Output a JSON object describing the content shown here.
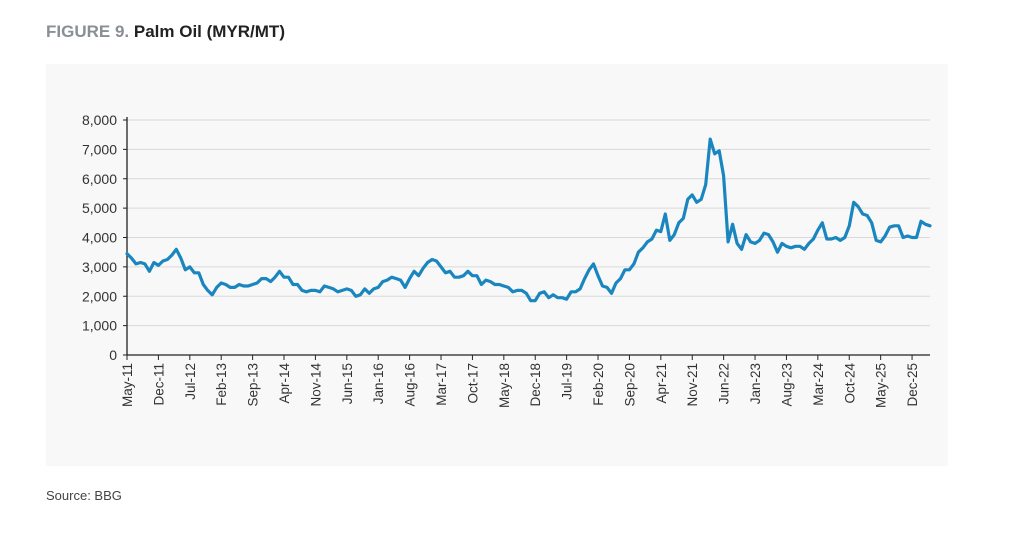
{
  "figure": {
    "label": "FIGURE 9.",
    "title": "Palm Oil (MYR/MT)"
  },
  "source": "Source: BBG",
  "colors": {
    "line": "#1a86bf",
    "axis": "#222222",
    "grid": "#d9d9d9",
    "panel": "#f8f8f8"
  },
  "chart_data": {
    "type": "line",
    "title": "Palm Oil (MYR/MT)",
    "xlabel": "",
    "ylabel": "",
    "ylim": [
      0,
      8000
    ],
    "grid": true,
    "legend": "none",
    "y_ticks": [
      "8,000",
      "7,000",
      "6,000",
      "5,000",
      "4,000",
      "3,000",
      "2,000",
      "1,000",
      "0"
    ],
    "x_ticks": [
      "May-11",
      "Dec-11",
      "Jul-12",
      "Feb-13",
      "Sep-13",
      "Apr-14",
      "Nov-14",
      "Jun-15",
      "Jan-16",
      "Aug-16",
      "Mar-17",
      "Oct-17",
      "May-18",
      "Dec-18",
      "Jul-19",
      "Feb-20",
      "Sep-20",
      "Apr-21",
      "Nov-21",
      "Jun-22",
      "Jan-23",
      "Aug-23",
      "Mar-24",
      "Oct-24",
      "May-25",
      "Dec-25"
    ],
    "series": [
      {
        "values": [
          [
            "2011-05",
            3450
          ],
          [
            "2011-06",
            3300
          ],
          [
            "2011-07",
            3100
          ],
          [
            "2011-08",
            3150
          ],
          [
            "2011-09",
            3100
          ],
          [
            "2011-10",
            2850
          ],
          [
            "2011-11",
            3150
          ],
          [
            "2011-12",
            3050
          ],
          [
            "2012-01",
            3200
          ],
          [
            "2012-02",
            3250
          ],
          [
            "2012-03",
            3400
          ],
          [
            "2012-04",
            3600
          ],
          [
            "2012-05",
            3300
          ],
          [
            "2012-06",
            2900
          ],
          [
            "2012-07",
            3000
          ],
          [
            "2012-08",
            2800
          ],
          [
            "2012-09",
            2800
          ],
          [
            "2012-10",
            2400
          ],
          [
            "2012-11",
            2200
          ],
          [
            "2012-12",
            2050
          ],
          [
            "2013-01",
            2300
          ],
          [
            "2013-02",
            2450
          ],
          [
            "2013-03",
            2400
          ],
          [
            "2013-04",
            2300
          ],
          [
            "2013-05",
            2300
          ],
          [
            "2013-06",
            2400
          ],
          [
            "2013-07",
            2350
          ],
          [
            "2013-08",
            2350
          ],
          [
            "2013-09",
            2400
          ],
          [
            "2013-10",
            2450
          ],
          [
            "2013-11",
            2600
          ],
          [
            "2013-12",
            2600
          ],
          [
            "2014-01",
            2500
          ],
          [
            "2014-02",
            2650
          ],
          [
            "2014-03",
            2850
          ],
          [
            "2014-04",
            2650
          ],
          [
            "2014-05",
            2650
          ],
          [
            "2014-06",
            2400
          ],
          [
            "2014-07",
            2400
          ],
          [
            "2014-08",
            2200
          ],
          [
            "2014-09",
            2150
          ],
          [
            "2014-10",
            2200
          ],
          [
            "2014-11",
            2200
          ],
          [
            "2014-12",
            2150
          ],
          [
            "2015-01",
            2350
          ],
          [
            "2015-02",
            2300
          ],
          [
            "2015-03",
            2250
          ],
          [
            "2015-04",
            2150
          ],
          [
            "2015-05",
            2200
          ],
          [
            "2015-06",
            2250
          ],
          [
            "2015-07",
            2200
          ],
          [
            "2015-08",
            2000
          ],
          [
            "2015-09",
            2050
          ],
          [
            "2015-10",
            2250
          ],
          [
            "2015-11",
            2100
          ],
          [
            "2015-12",
            2250
          ],
          [
            "2016-01",
            2300
          ],
          [
            "2016-02",
            2500
          ],
          [
            "2016-03",
            2550
          ],
          [
            "2016-04",
            2650
          ],
          [
            "2016-05",
            2600
          ],
          [
            "2016-06",
            2550
          ],
          [
            "2016-07",
            2300
          ],
          [
            "2016-08",
            2600
          ],
          [
            "2016-09",
            2850
          ],
          [
            "2016-10",
            2700
          ],
          [
            "2016-11",
            2950
          ],
          [
            "2016-12",
            3150
          ],
          [
            "2017-01",
            3250
          ],
          [
            "2017-02",
            3200
          ],
          [
            "2017-03",
            3000
          ],
          [
            "2017-04",
            2800
          ],
          [
            "2017-05",
            2850
          ],
          [
            "2017-06",
            2650
          ],
          [
            "2017-07",
            2650
          ],
          [
            "2017-08",
            2700
          ],
          [
            "2017-09",
            2850
          ],
          [
            "2017-10",
            2700
          ],
          [
            "2017-11",
            2700
          ],
          [
            "2017-12",
            2400
          ],
          [
            "2018-01",
            2550
          ],
          [
            "2018-02",
            2500
          ],
          [
            "2018-03",
            2400
          ],
          [
            "2018-04",
            2400
          ],
          [
            "2018-05",
            2350
          ],
          [
            "2018-06",
            2300
          ],
          [
            "2018-07",
            2150
          ],
          [
            "2018-08",
            2200
          ],
          [
            "2018-09",
            2200
          ],
          [
            "2018-10",
            2100
          ],
          [
            "2018-11",
            1850
          ],
          [
            "2018-12",
            1850
          ],
          [
            "2019-01",
            2100
          ],
          [
            "2019-02",
            2150
          ],
          [
            "2019-03",
            1950
          ],
          [
            "2019-04",
            2050
          ],
          [
            "2019-05",
            1950
          ],
          [
            "2019-06",
            1950
          ],
          [
            "2019-07",
            1900
          ],
          [
            "2019-08",
            2150
          ],
          [
            "2019-09",
            2150
          ],
          [
            "2019-10",
            2250
          ],
          [
            "2019-11",
            2600
          ],
          [
            "2019-12",
            2900
          ],
          [
            "2020-01",
            3100
          ],
          [
            "2020-02",
            2700
          ],
          [
            "2020-03",
            2350
          ],
          [
            "2020-04",
            2300
          ],
          [
            "2020-05",
            2100
          ],
          [
            "2020-06",
            2450
          ],
          [
            "2020-07",
            2600
          ],
          [
            "2020-08",
            2900
          ],
          [
            "2020-09",
            2900
          ],
          [
            "2020-10",
            3100
          ],
          [
            "2020-11",
            3500
          ],
          [
            "2020-12",
            3650
          ],
          [
            "2021-01",
            3850
          ],
          [
            "2021-02",
            3950
          ],
          [
            "2021-03",
            4250
          ],
          [
            "2021-04",
            4200
          ],
          [
            "2021-05",
            4800
          ],
          [
            "2021-06",
            3900
          ],
          [
            "2021-07",
            4100
          ],
          [
            "2021-08",
            4500
          ],
          [
            "2021-09",
            4650
          ],
          [
            "2021-10",
            5300
          ],
          [
            "2021-11",
            5450
          ],
          [
            "2021-12",
            5200
          ],
          [
            "2022-01",
            5300
          ],
          [
            "2022-02",
            5800
          ],
          [
            "2022-03",
            7350
          ],
          [
            "2022-04",
            6850
          ],
          [
            "2022-05",
            6950
          ],
          [
            "2022-06",
            6100
          ],
          [
            "2022-07",
            3850
          ],
          [
            "2022-08",
            4450
          ],
          [
            "2022-09",
            3800
          ],
          [
            "2022-10",
            3600
          ],
          [
            "2022-11",
            4100
          ],
          [
            "2022-12",
            3850
          ],
          [
            "2023-01",
            3800
          ],
          [
            "2023-02",
            3900
          ],
          [
            "2023-03",
            4150
          ],
          [
            "2023-04",
            4100
          ],
          [
            "2023-05",
            3850
          ],
          [
            "2023-06",
            3500
          ],
          [
            "2023-07",
            3800
          ],
          [
            "2023-08",
            3700
          ],
          [
            "2023-09",
            3650
          ],
          [
            "2023-10",
            3700
          ],
          [
            "2023-11",
            3700
          ],
          [
            "2023-12",
            3600
          ],
          [
            "2024-01",
            3800
          ],
          [
            "2024-02",
            3950
          ],
          [
            "2024-03",
            4250
          ],
          [
            "2024-04",
            4500
          ],
          [
            "2024-05",
            3950
          ],
          [
            "2024-06",
            3950
          ],
          [
            "2024-07",
            4000
          ],
          [
            "2024-08",
            3900
          ],
          [
            "2024-09",
            4000
          ],
          [
            "2024-10",
            4400
          ],
          [
            "2024-11",
            5200
          ],
          [
            "2024-12",
            5050
          ],
          [
            "2025-01",
            4800
          ],
          [
            "2025-02",
            4750
          ],
          [
            "2025-03",
            4500
          ],
          [
            "2025-04",
            3900
          ],
          [
            "2025-05",
            3850
          ],
          [
            "2025-06",
            4050
          ],
          [
            "2025-07",
            4350
          ],
          [
            "2025-08",
            4400
          ],
          [
            "2025-09",
            4400
          ],
          [
            "2025-10",
            4000
          ],
          [
            "2025-11",
            4050
          ],
          [
            "2025-12",
            4000
          ],
          [
            "2026-01",
            4000
          ],
          [
            "2026-02",
            4550
          ],
          [
            "2026-03",
            4450
          ],
          [
            "2026-04",
            4400
          ]
        ]
      }
    ]
  }
}
